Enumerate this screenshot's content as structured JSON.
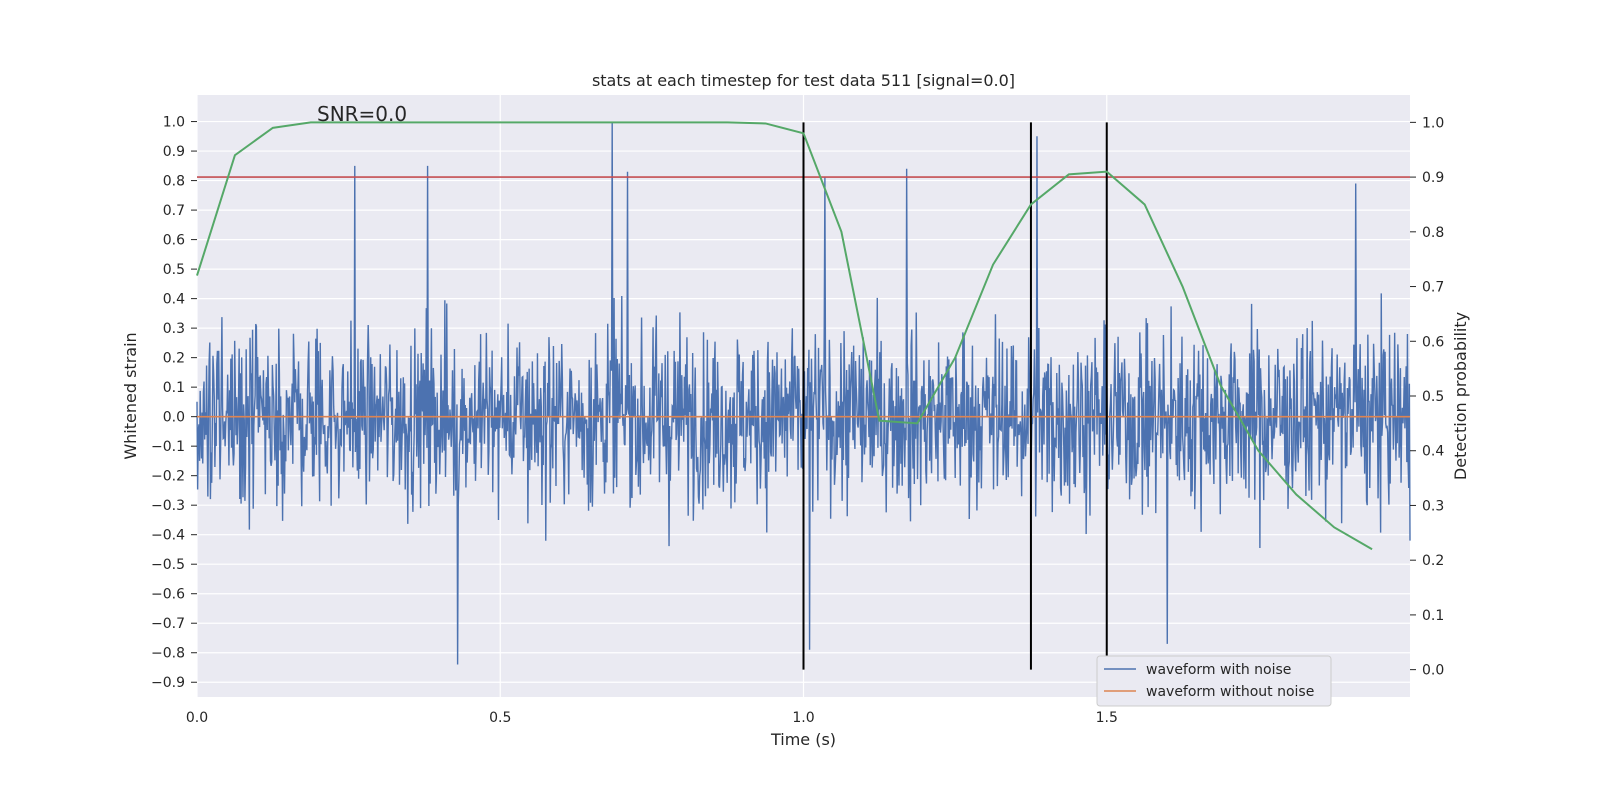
{
  "chart_data": {
    "type": "line",
    "title": "stats at each timestep for test data 511 [signal=0.0]",
    "xlabel": "Time (s)",
    "ylabel": "Whitened strain",
    "y2label": "Detection probability",
    "xlim": [
      0.0,
      2.0
    ],
    "ylim": [
      -0.95,
      1.09
    ],
    "y2lim": [
      -0.05,
      1.05
    ],
    "x_ticks": [
      0.0,
      0.5,
      1.0,
      1.5
    ],
    "x_tick_labels": [
      "0.0",
      "0.5",
      "1.0",
      "1.5"
    ],
    "y_ticks": [
      1.0,
      0.9,
      0.8,
      0.7,
      0.6,
      0.5,
      0.4,
      0.3,
      0.2,
      0.1,
      0.0,
      -0.1,
      -0.2,
      -0.3,
      -0.4,
      -0.5,
      -0.6,
      -0.7,
      -0.8,
      -0.9
    ],
    "y_tick_labels": [
      "1.0",
      "0.9",
      "0.8",
      "0.7",
      "0.6",
      "0.5",
      "0.4",
      "0.3",
      "0.2",
      "0.1",
      "0.0",
      "−0.1",
      "−0.2",
      "−0.3",
      "−0.4",
      "−0.5",
      "−0.6",
      "−0.7",
      "−0.8",
      "−0.9"
    ],
    "y2_ticks": [
      1.0,
      0.9,
      0.8,
      0.7,
      0.6,
      0.5,
      0.4,
      0.3,
      0.2,
      0.1,
      0.0
    ],
    "y2_tick_labels": [
      "1.0",
      "0.9",
      "0.8",
      "0.7",
      "0.6",
      "0.5",
      "0.4",
      "0.3",
      "0.2",
      "0.1",
      "0.0"
    ],
    "grid": true,
    "legend_position": "lower-right",
    "annotation": "SNR=0.0",
    "noise_series": {
      "name": "waveform with noise",
      "color": "#4c72b0",
      "x_start": 0.0,
      "x_end": 2.0,
      "approx_range": [
        -0.84,
        1.0
      ],
      "notable_peaks": [
        [
          0.26,
          0.85
        ],
        [
          0.38,
          0.85
        ],
        [
          0.685,
          1.0
        ],
        [
          0.71,
          0.83
        ],
        [
          1.035,
          0.81
        ],
        [
          1.17,
          0.84
        ],
        [
          1.385,
          0.95
        ],
        [
          1.91,
          0.79
        ],
        [
          0.43,
          -0.84
        ],
        [
          1.01,
          -0.79
        ],
        [
          1.6,
          -0.77
        ]
      ]
    },
    "clean_series": {
      "name": "waveform without noise",
      "color": "#dd8452",
      "y": 0.0
    },
    "threshold": {
      "y2": 0.9,
      "color": "#c44e52"
    },
    "probability_series": {
      "color": "#55a868",
      "x": [
        0.0,
        0.0625,
        0.125,
        0.1875,
        0.25,
        0.3125,
        0.375,
        0.4375,
        0.5,
        0.5625,
        0.625,
        0.6875,
        0.75,
        0.8125,
        0.875,
        0.9375,
        1.0,
        1.0625,
        1.125,
        1.1875,
        1.25,
        1.3125,
        1.375,
        1.4375,
        1.5,
        1.5625,
        1.625,
        1.6875,
        1.75,
        1.8125,
        1.875,
        1.9375
      ],
      "y": [
        0.72,
        0.94,
        0.99,
        1.0,
        1.0,
        1.0,
        1.0,
        1.0,
        1.0,
        1.0,
        1.0,
        1.0,
        1.0,
        1.0,
        1.0,
        0.998,
        0.98,
        0.8,
        0.455,
        0.45,
        0.57,
        0.74,
        0.85,
        0.905,
        0.91,
        0.85,
        0.7,
        0.52,
        0.4,
        0.32,
        0.26,
        0.22
      ]
    },
    "vertical_lines": [
      1.0,
      1.375,
      1.5
    ]
  }
}
